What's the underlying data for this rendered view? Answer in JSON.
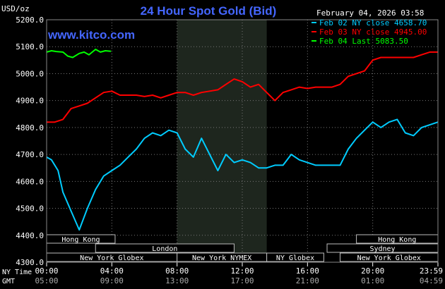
{
  "chart_data": {
    "type": "line",
    "title": "24 Hour Spot Gold (Bid)",
    "ylabel": "USD/oz",
    "date": "February 04, 2026 03:58",
    "watermark": "www.kitco.com",
    "ylim": [
      4300,
      5200
    ],
    "y_ticks": [
      "5200.0",
      "5100.0",
      "5000.0",
      "4900.0",
      "4800.0",
      "4700.0",
      "4600.0",
      "4500.0",
      "4400.0",
      "4300.0"
    ],
    "x_label_ny": "NY Time",
    "x_label_gmt": "GMT",
    "x_ticks_ny": [
      "00:00",
      "04:00",
      "08:00",
      "12:00",
      "16:00",
      "20:00",
      "23:59"
    ],
    "x_ticks_gmt": [
      "05:00",
      "09:00",
      "13:00",
      "17:00",
      "21:00",
      "01:00",
      "04:59"
    ],
    "x_hours": [
      0,
      4,
      8,
      12,
      16,
      20,
      24
    ],
    "shaded_session_hours": [
      8,
      13.5
    ],
    "legend_position": "top-right",
    "series": [
      {
        "name": "Feb 02 NY close 4658.70",
        "color": "#00ccff",
        "x": [
          0,
          0.3,
          0.7,
          1.0,
          1.5,
          2.0,
          2.5,
          3.0,
          3.5,
          4.0,
          4.5,
          5.0,
          5.5,
          6.0,
          6.5,
          7.0,
          7.5,
          8.0,
          8.5,
          9.0,
          9.5,
          10.0,
          10.5,
          11.0,
          11.5,
          12.0,
          12.5,
          13.0,
          13.5,
          14.0,
          14.5,
          15.0,
          15.5,
          16.0,
          16.5,
          17.0,
          17.5,
          18.0,
          18.5,
          19.0,
          19.5,
          20.0,
          20.5,
          21.0,
          21.5,
          22.0,
          22.5,
          23.0,
          23.5,
          24.0
        ],
        "values": [
          4690,
          4680,
          4640,
          4560,
          4490,
          4420,
          4500,
          4570,
          4620,
          4640,
          4660,
          4690,
          4720,
          4760,
          4780,
          4770,
          4790,
          4780,
          4720,
          4690,
          4760,
          4700,
          4640,
          4700,
          4670,
          4680,
          4670,
          4650,
          4650,
          4660,
          4660,
          4700,
          4680,
          4670,
          4660,
          4660,
          4660,
          4660,
          4720,
          4760,
          4790,
          4820,
          4800,
          4820,
          4830,
          4780,
          4770,
          4800,
          4810,
          4820
        ]
      },
      {
        "name": "Feb 03 NY close 4945.00",
        "color": "#ff0000",
        "x": [
          0,
          0.5,
          1.0,
          1.5,
          2.0,
          2.5,
          3.0,
          3.5,
          4.0,
          4.5,
          5.0,
          5.5,
          6.0,
          6.5,
          7.0,
          7.5,
          8.0,
          8.5,
          9.0,
          9.5,
          10.0,
          10.5,
          11.0,
          11.5,
          12.0,
          12.5,
          13.0,
          13.5,
          14.0,
          14.5,
          15.0,
          15.5,
          16.0,
          16.5,
          17.0,
          17.5,
          18.0,
          18.5,
          19.0,
          19.5,
          20.0,
          20.5,
          21.0,
          21.5,
          22.0,
          22.5,
          23.0,
          23.5,
          24.0
        ],
        "values": [
          4820,
          4820,
          4830,
          4870,
          4880,
          4890,
          4910,
          4930,
          4935,
          4920,
          4920,
          4920,
          4915,
          4920,
          4910,
          4920,
          4930,
          4930,
          4920,
          4930,
          4935,
          4940,
          4960,
          4980,
          4970,
          4950,
          4960,
          4930,
          4900,
          4930,
          4940,
          4950,
          4945,
          4950,
          4950,
          4950,
          4960,
          4990,
          5000,
          5010,
          5050,
          5060,
          5060,
          5060,
          5060,
          5060,
          5070,
          5080,
          5080
        ]
      },
      {
        "name": "Feb 04 Last 5083.50",
        "color": "#00ff00",
        "x": [
          0,
          0.3,
          0.6,
          1.0,
          1.3,
          1.6,
          2.0,
          2.3,
          2.6,
          3.0,
          3.3,
          3.6,
          3.95
        ],
        "values": [
          5080,
          5085,
          5082,
          5080,
          5065,
          5060,
          5075,
          5080,
          5070,
          5090,
          5080,
          5085,
          5083
        ]
      }
    ],
    "sessions": [
      {
        "label": "Hong Kong",
        "start": 0,
        "end": 4.2,
        "row": 1
      },
      {
        "label": "London",
        "start": 3,
        "end": 11.5,
        "row": 2
      },
      {
        "label": "New York Globex",
        "start": 0,
        "end": 8,
        "row": 3
      },
      {
        "label": "New York NYMEX",
        "start": 8,
        "end": 13.5,
        "row": 3
      },
      {
        "label": "NY Globex",
        "start": 13.5,
        "end": 17,
        "row": 3
      },
      {
        "label": "Hong Kong",
        "start": 19,
        "end": 24,
        "row": 1
      },
      {
        "label": "Sydney",
        "start": 17.2,
        "end": 24,
        "row": 2
      },
      {
        "label": "New York Globex",
        "start": 18,
        "end": 24,
        "row": 3
      }
    ]
  }
}
